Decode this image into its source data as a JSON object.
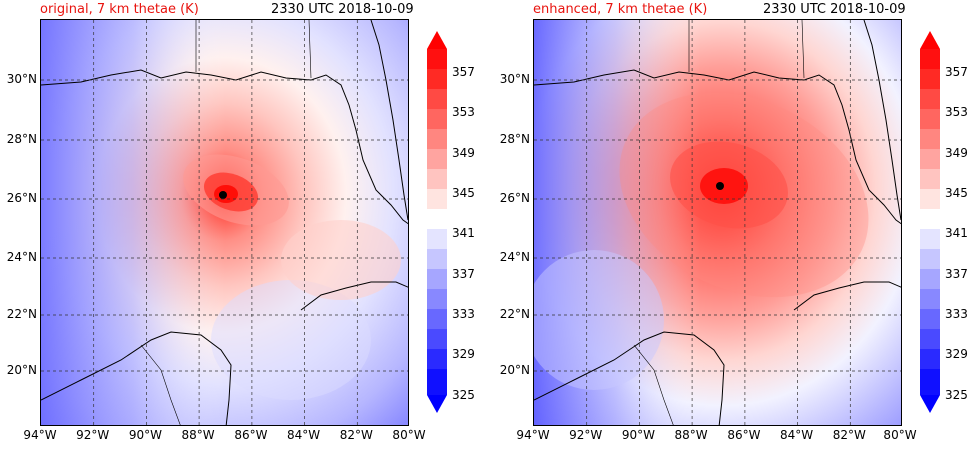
{
  "left": {
    "title": "original, 7 km thetae (K)",
    "time": "2330 UTC 2018-10-09"
  },
  "right": {
    "title": "enhanced, 7 km thetae (K)",
    "time": "2330 UTC 2018-10-09"
  },
  "lon_ticks": [
    "94°W",
    "92°W",
    "90°W",
    "88°W",
    "86°W",
    "84°W",
    "82°W",
    "80°W"
  ],
  "lat_ticks": [
    "30°N",
    "28°N",
    "26°N",
    "24°N",
    "22°N",
    "20°N"
  ],
  "colorbar_labels": [
    "357",
    "353",
    "349",
    "345",
    "341",
    "337",
    "333",
    "329",
    "325"
  ],
  "colors": {
    "title_red": "#e8140f",
    "cmap_low": "#0000ff",
    "cmap_high": "#ff0000"
  },
  "storm_center": {
    "left": {
      "lon": -87.2,
      "lat": 26.1
    },
    "right": {
      "lon": -86.9,
      "lat": 26.5
    }
  }
}
